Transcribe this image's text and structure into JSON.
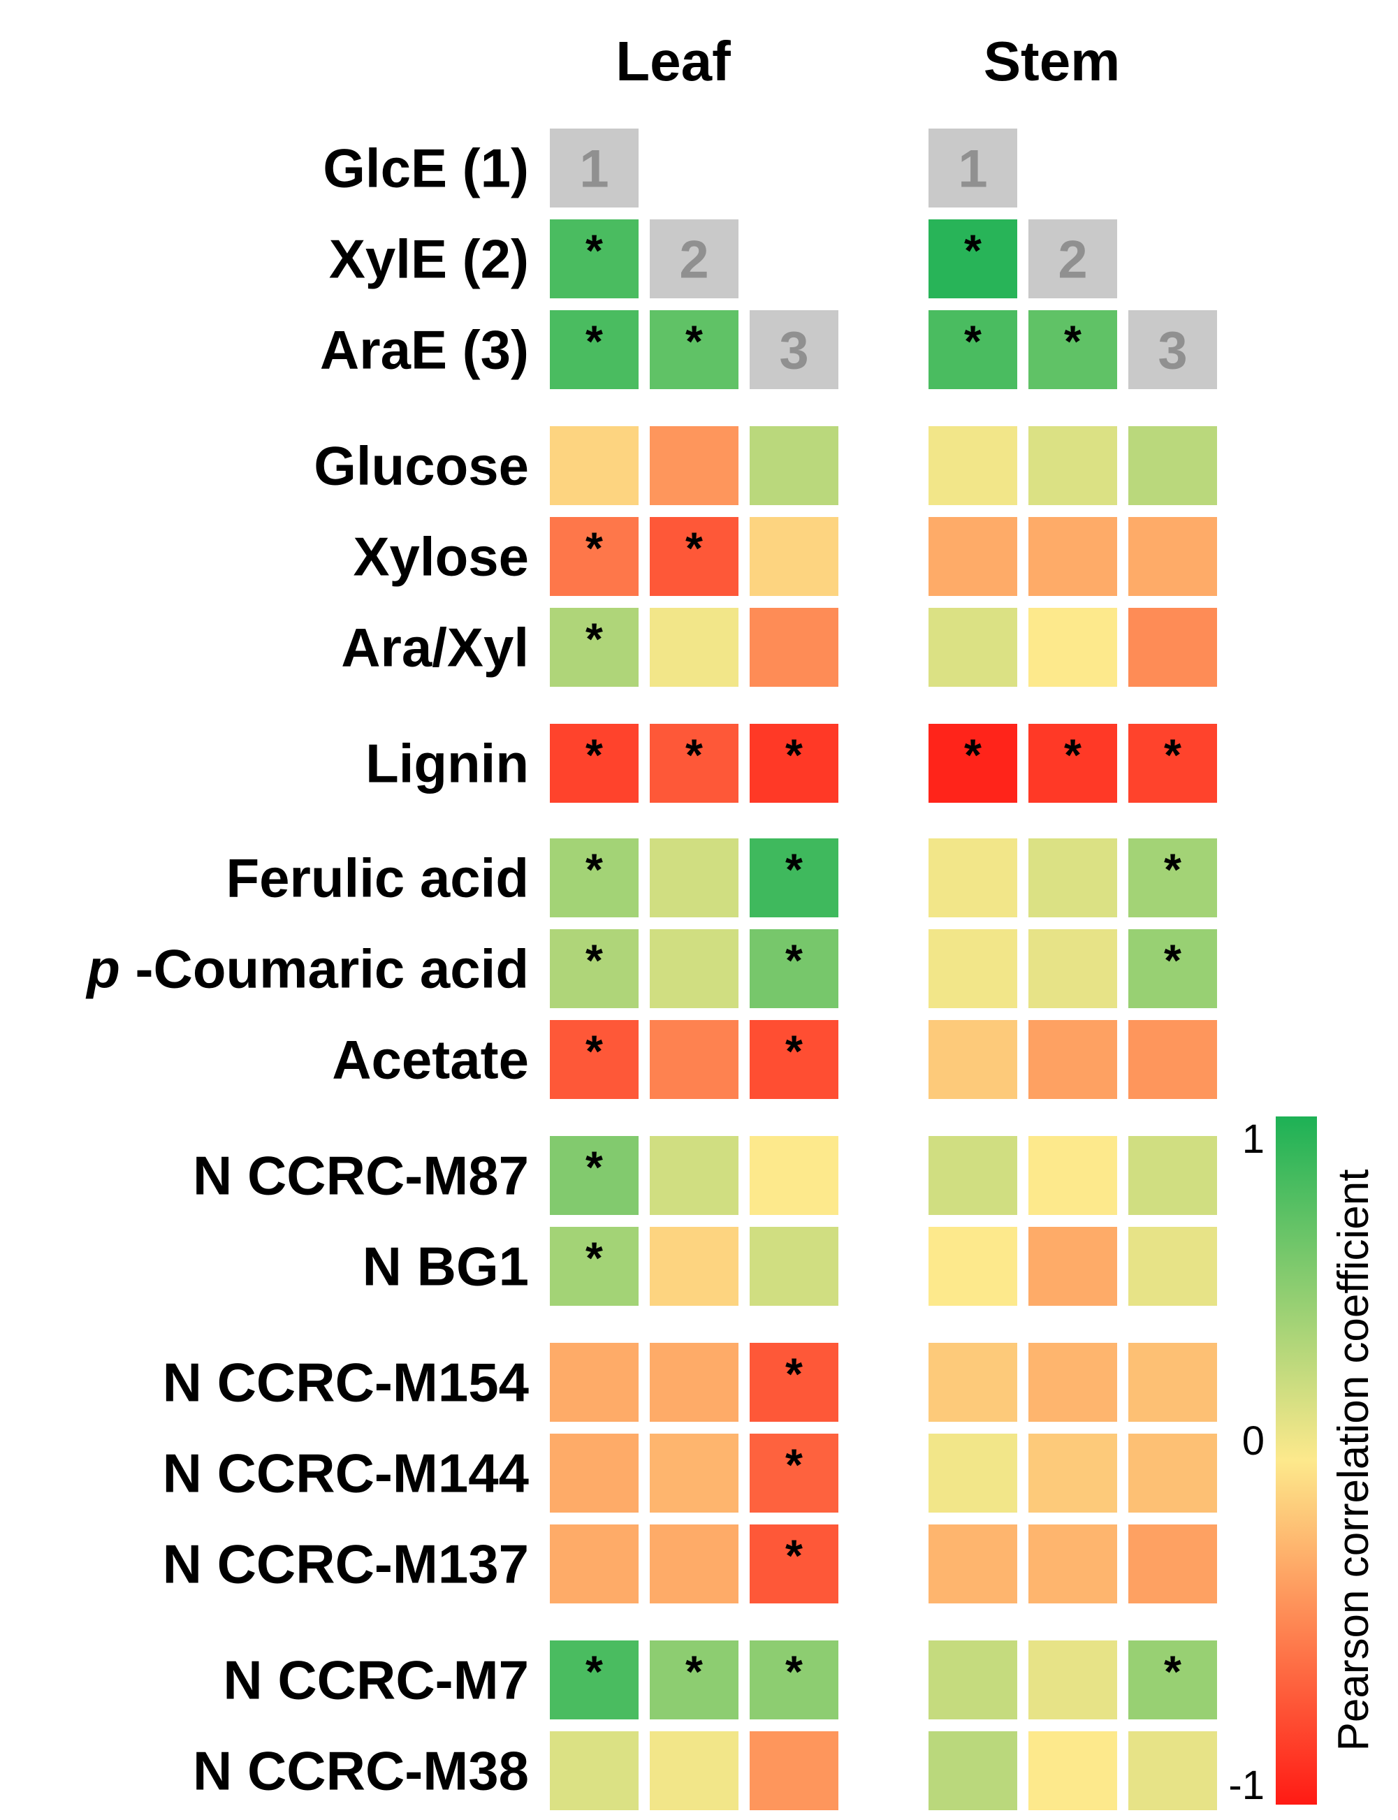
{
  "chart_data": {
    "type": "heatmap",
    "panels": [
      {
        "title": "Leaf",
        "columns": [
          "1",
          "2",
          "3"
        ]
      },
      {
        "title": "Stem",
        "columns": [
          "1",
          "2",
          "3"
        ]
      }
    ],
    "rows": [
      {
        "label": "GlcE (1)",
        "diag": 1,
        "leaf": [
          null,
          null,
          null
        ],
        "leaf_sig": [
          false,
          false,
          false
        ],
        "stem": [
          null,
          null,
          null
        ],
        "stem_sig": [
          false,
          false,
          false
        ]
      },
      {
        "label": "XylE (2)",
        "diag": 2,
        "leaf": [
          0.8,
          null,
          null
        ],
        "leaf_sig": [
          true,
          false,
          false
        ],
        "stem": [
          0.95,
          null,
          null
        ],
        "stem_sig": [
          true,
          false,
          false
        ]
      },
      {
        "label": "AraE (3)",
        "diag": 3,
        "leaf": [
          0.8,
          0.7,
          null
        ],
        "leaf_sig": [
          true,
          true,
          false
        ],
        "stem": [
          0.8,
          0.7,
          null
        ],
        "stem_sig": [
          true,
          true,
          false
        ]
      },
      {
        "label": "Glucose",
        "leaf": [
          -0.1,
          -0.4,
          0.3
        ],
        "leaf_sig": [
          false,
          false,
          false
        ],
        "stem": [
          0.05,
          0.15,
          0.3
        ],
        "stem_sig": [
          false,
          false,
          false
        ]
      },
      {
        "label": "Xylose",
        "leaf": [
          -0.55,
          -0.7,
          -0.1
        ],
        "leaf_sig": [
          true,
          true,
          false
        ],
        "stem": [
          -0.3,
          -0.3,
          -0.3
        ],
        "stem_sig": [
          false,
          false,
          false
        ]
      },
      {
        "label": "Ara/Xyl",
        "leaf": [
          0.35,
          0.05,
          -0.45
        ],
        "leaf_sig": [
          true,
          false,
          false
        ],
        "stem": [
          0.15,
          0.0,
          -0.45
        ],
        "stem_sig": [
          false,
          false,
          false
        ]
      },
      {
        "label": "Lignin",
        "leaf": [
          -0.8,
          -0.7,
          -0.85
        ],
        "leaf_sig": [
          true,
          true,
          true
        ],
        "stem": [
          -0.95,
          -0.85,
          -0.8
        ],
        "stem_sig": [
          true,
          true,
          true
        ]
      },
      {
        "label": "Ferulic acid",
        "leaf": [
          0.4,
          0.2,
          0.85
        ],
        "leaf_sig": [
          true,
          false,
          true
        ],
        "stem": [
          0.05,
          0.15,
          0.4
        ],
        "stem_sig": [
          false,
          false,
          true
        ]
      },
      {
        "label": "-Coumaric acid",
        "prefix": "p",
        "leaf": [
          0.35,
          0.2,
          0.6
        ],
        "leaf_sig": [
          true,
          false,
          true
        ],
        "stem": [
          0.05,
          0.1,
          0.45
        ],
        "stem_sig": [
          false,
          false,
          true
        ]
      },
      {
        "label": "Acetate",
        "leaf": [
          -0.7,
          -0.5,
          -0.75
        ],
        "leaf_sig": [
          true,
          false,
          true
        ],
        "stem": [
          -0.15,
          -0.35,
          -0.4
        ],
        "stem_sig": [
          false,
          false,
          false
        ]
      },
      {
        "label": "N CCRC-M87",
        "leaf": [
          0.55,
          0.2,
          0.0
        ],
        "leaf_sig": [
          true,
          false,
          false
        ],
        "stem": [
          0.2,
          0.0,
          0.2
        ],
        "stem_sig": [
          false,
          false,
          false
        ]
      },
      {
        "label": "N BG1",
        "leaf": [
          0.4,
          -0.1,
          0.2
        ],
        "leaf_sig": [
          true,
          false,
          false
        ],
        "stem": [
          0.0,
          -0.3,
          0.1
        ],
        "stem_sig": [
          false,
          false,
          false
        ]
      },
      {
        "label": "N CCRC-M154",
        "leaf": [
          -0.3,
          -0.3,
          -0.7
        ],
        "leaf_sig": [
          false,
          false,
          true
        ],
        "stem": [
          -0.15,
          -0.25,
          -0.2
        ],
        "stem_sig": [
          false,
          false,
          false
        ]
      },
      {
        "label": "N CCRC-M144",
        "leaf": [
          -0.3,
          -0.25,
          -0.65
        ],
        "leaf_sig": [
          false,
          false,
          true
        ],
        "stem": [
          0.05,
          -0.15,
          -0.2
        ],
        "stem_sig": [
          false,
          false,
          false
        ]
      },
      {
        "label": "N CCRC-M137",
        "leaf": [
          -0.3,
          -0.3,
          -0.7
        ],
        "leaf_sig": [
          false,
          false,
          true
        ],
        "stem": [
          -0.25,
          -0.25,
          -0.35
        ],
        "stem_sig": [
          false,
          false,
          false
        ]
      },
      {
        "label": "N CCRC-M7",
        "leaf": [
          0.8,
          0.5,
          0.5
        ],
        "leaf_sig": [
          true,
          true,
          true
        ],
        "stem": [
          0.25,
          0.1,
          0.45
        ],
        "stem_sig": [
          false,
          false,
          true
        ]
      },
      {
        "label": "N CCRC-M38",
        "leaf": [
          0.15,
          0.05,
          -0.4
        ],
        "leaf_sig": [
          false,
          false,
          false
        ],
        "stem": [
          0.3,
          0.0,
          0.1
        ],
        "stem_sig": [
          false,
          false,
          false
        ]
      }
    ],
    "significance_marker": "*",
    "colorbar": {
      "title": "Pearson correlation coefficient",
      "ticks": [
        "1",
        "0",
        "-1"
      ],
      "range": [
        -1,
        1
      ],
      "colors": {
        "low": "#ff1a14",
        "mid": "#fde98c",
        "high": "#1db155"
      }
    },
    "diagonal_color": "#c9c9c9"
  }
}
